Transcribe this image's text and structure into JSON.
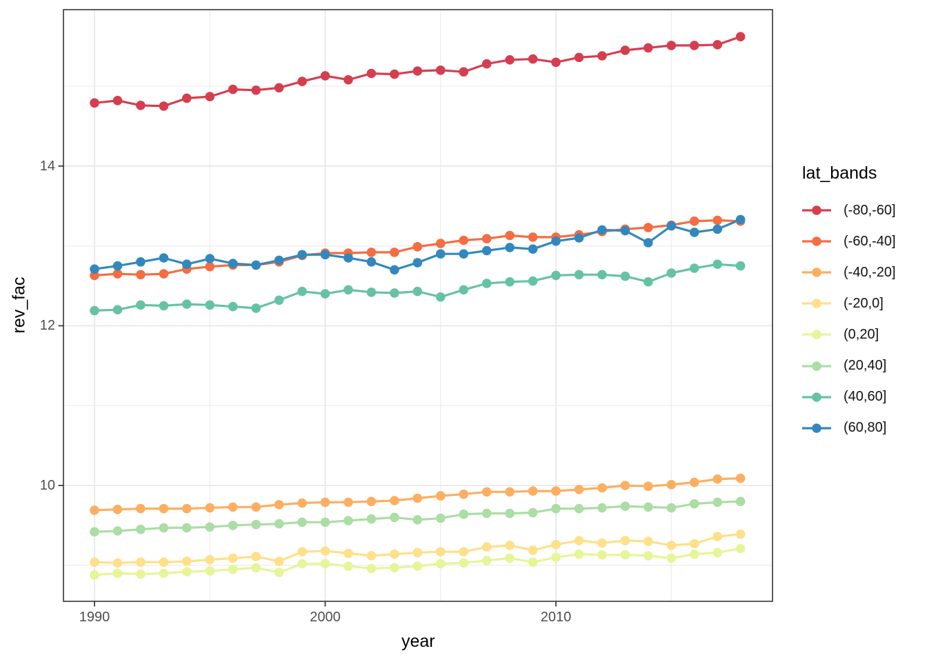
{
  "chart_data": {
    "type": "line",
    "title": "",
    "xlabel": "year",
    "ylabel": "rev_fac",
    "legend_title": "lat_bands",
    "legend_position": "right",
    "grid": "on",
    "background": "#ffffff",
    "panel_border_color": "#333333",
    "grid_color": "#e8e8e8",
    "tick_label_color": "#4d4d4d",
    "xlim": [
      1988.6,
      2019.4
    ],
    "ylim": [
      8.55,
      15.96
    ],
    "x_ticks": [
      {
        "value": 1990,
        "label": "1990"
      },
      {
        "value": 2000,
        "label": "2000"
      },
      {
        "value": 2010,
        "label": "2010"
      }
    ],
    "y_ticks": [
      {
        "value": 14,
        "label": "14"
      },
      {
        "value": 12,
        "label": "12"
      },
      {
        "value": 10,
        "label": "10"
      }
    ],
    "x_minor": [
      1995,
      2005,
      2015
    ],
    "y_minor": [
      15,
      13,
      11,
      9
    ],
    "x": [
      1990,
      1991,
      1992,
      1993,
      1994,
      1995,
      1996,
      1997,
      1998,
      1999,
      2000,
      2001,
      2002,
      2003,
      2004,
      2005,
      2006,
      2007,
      2008,
      2009,
      2010,
      2011,
      2012,
      2013,
      2014,
      2015,
      2016,
      2017,
      2018
    ],
    "series": [
      {
        "name": "(-80,-60]",
        "color": "#d53e4f",
        "values": [
          14.79,
          14.82,
          14.76,
          14.75,
          14.85,
          14.87,
          14.96,
          14.95,
          14.98,
          15.06,
          15.13,
          15.08,
          15.16,
          15.15,
          15.19,
          15.2,
          15.18,
          15.28,
          15.33,
          15.34,
          15.3,
          15.36,
          15.38,
          15.45,
          15.48,
          15.51,
          15.51,
          15.52,
          15.62
        ]
      },
      {
        "name": "(-60,-40]",
        "color": "#f46d43",
        "values": [
          12.63,
          12.65,
          12.64,
          12.65,
          12.71,
          12.74,
          12.76,
          12.76,
          12.8,
          12.88,
          12.91,
          12.91,
          12.92,
          12.92,
          12.99,
          13.03,
          13.07,
          13.09,
          13.13,
          13.11,
          13.11,
          13.14,
          13.18,
          13.21,
          13.23,
          13.26,
          13.31,
          13.32,
          13.31
        ]
      },
      {
        "name": "(-40,-20]",
        "color": "#fdae61",
        "values": [
          9.69,
          9.7,
          9.71,
          9.71,
          9.71,
          9.72,
          9.73,
          9.73,
          9.76,
          9.78,
          9.79,
          9.79,
          9.8,
          9.81,
          9.84,
          9.87,
          9.89,
          9.92,
          9.92,
          9.93,
          9.93,
          9.95,
          9.97,
          10.0,
          9.99,
          10.01,
          10.04,
          10.08,
          10.09
        ]
      },
      {
        "name": "(-20,0]",
        "color": "#fee08b",
        "values": [
          9.04,
          9.03,
          9.04,
          9.04,
          9.05,
          9.07,
          9.09,
          9.11,
          9.05,
          9.17,
          9.18,
          9.15,
          9.12,
          9.14,
          9.16,
          9.17,
          9.17,
          9.23,
          9.25,
          9.19,
          9.26,
          9.31,
          9.28,
          9.31,
          9.3,
          9.25,
          9.27,
          9.36,
          9.39
        ]
      },
      {
        "name": "(0,20]",
        "color": "#e6f598",
        "values": [
          8.88,
          8.9,
          8.89,
          8.9,
          8.92,
          8.93,
          8.95,
          8.97,
          8.91,
          9.02,
          9.02,
          8.99,
          8.96,
          8.97,
          8.99,
          9.02,
          9.03,
          9.06,
          9.09,
          9.04,
          9.1,
          9.14,
          9.13,
          9.13,
          9.12,
          9.09,
          9.14,
          9.16,
          9.21
        ]
      },
      {
        "name": "(20,40]",
        "color": "#abdda4",
        "values": [
          9.42,
          9.43,
          9.45,
          9.47,
          9.47,
          9.48,
          9.5,
          9.51,
          9.52,
          9.54,
          9.54,
          9.56,
          9.58,
          9.6,
          9.57,
          9.59,
          9.64,
          9.65,
          9.65,
          9.66,
          9.71,
          9.71,
          9.72,
          9.74,
          9.73,
          9.72,
          9.77,
          9.79,
          9.8
        ]
      },
      {
        "name": "(40,60]",
        "color": "#66c2a5",
        "values": [
          12.19,
          12.2,
          12.26,
          12.25,
          12.27,
          12.26,
          12.24,
          12.22,
          12.32,
          12.43,
          12.4,
          12.45,
          12.42,
          12.41,
          12.43,
          12.36,
          12.45,
          12.53,
          12.55,
          12.56,
          12.63,
          12.64,
          12.64,
          12.62,
          12.55,
          12.66,
          12.72,
          12.77,
          12.75
        ]
      },
      {
        "name": "(60,80]",
        "color": "#3288bd",
        "values": [
          12.71,
          12.75,
          12.8,
          12.85,
          12.77,
          12.84,
          12.78,
          12.76,
          12.82,
          12.89,
          12.89,
          12.85,
          12.8,
          12.7,
          12.79,
          12.9,
          12.9,
          12.94,
          12.98,
          12.96,
          13.06,
          13.1,
          13.2,
          13.19,
          13.04,
          13.25,
          13.17,
          13.21,
          13.33
        ]
      }
    ]
  }
}
